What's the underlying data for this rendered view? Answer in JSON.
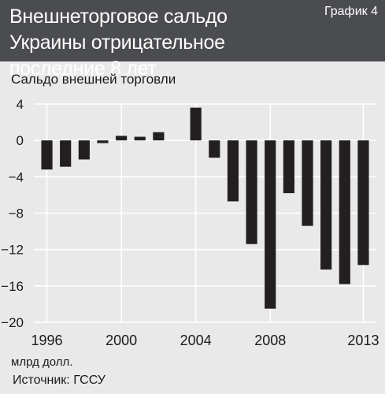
{
  "header": {
    "title": "Внешнеторговое сальдо Украины отрицательное последние 8 лет",
    "badge": "График 4"
  },
  "source": "Источник: ГССУ",
  "colors": {
    "header_bg": "#4b4c4f",
    "background": "#e9e9ea",
    "bar": "#231f20",
    "grid": "#ffffff"
  },
  "chart_data": {
    "type": "bar",
    "title": "",
    "ylabel": "Сальдо внешней торговли",
    "xlabel": "млрд долл.",
    "ylim": [
      -20,
      4
    ],
    "yticks": [
      4,
      0,
      -4,
      -8,
      -12,
      -16,
      -20
    ],
    "ytick_labels": [
      "4",
      "0",
      "−4",
      "−8",
      "−12",
      "−16",
      "−20"
    ],
    "xlim": [
      1995.3,
      2013.7
    ],
    "xticks": [
      1996,
      2000,
      2004,
      2008,
      2013
    ],
    "xtick_labels": [
      "1996",
      "2000",
      "2004",
      "2008",
      "2013"
    ],
    "grid": true,
    "categories": [
      1996,
      1997,
      1998,
      1999,
      2000,
      2001,
      2002,
      2003,
      2004,
      2005,
      2006,
      2007,
      2008,
      2009,
      2010,
      2011,
      2012,
      2013
    ],
    "values": [
      -3.2,
      -2.9,
      -2.1,
      -0.3,
      0.5,
      0.4,
      0.9,
      0.0,
      3.6,
      -1.9,
      -6.7,
      -11.4,
      -18.5,
      -5.8,
      -9.4,
      -14.2,
      -15.8,
      -13.7
    ]
  }
}
